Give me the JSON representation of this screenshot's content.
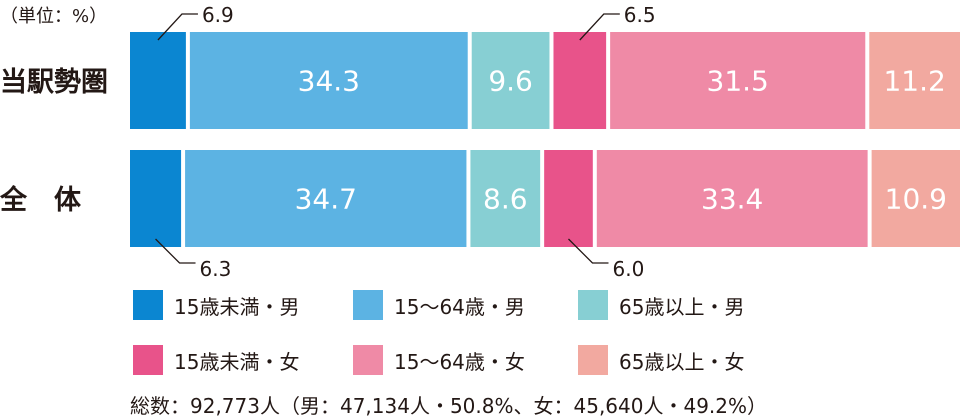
{
  "unit_label": "（単位：%）",
  "total_note": "総数：92,773人（男：47,134人・50.8%、女：45,640人・49.2%）",
  "chart_data": {
    "type": "bar",
    "orientation": "horizontal",
    "stacked": true,
    "normalized": true,
    "categories": [
      "当駅勢圏",
      "全　体"
    ],
    "series": [
      {
        "name": "15歳未満・男",
        "color": "#0b86d1",
        "values": [
          6.9,
          6.3
        ]
      },
      {
        "name": "15〜64歳・男",
        "color": "#5cb3e3",
        "values": [
          34.3,
          34.7
        ]
      },
      {
        "name": "65歳以上・男",
        "color": "#87cfd3",
        "values": [
          9.6,
          8.6
        ]
      },
      {
        "name": "15歳未満・女",
        "color": "#e8538a",
        "values": [
          6.5,
          6.0
        ]
      },
      {
        "name": "15〜64歳・女",
        "color": "#ef8aa6",
        "values": [
          31.5,
          33.4
        ]
      },
      {
        "name": "65歳以上・女",
        "color": "#f2a9a0",
        "values": [
          11.2,
          10.9
        ]
      }
    ],
    "legend_position": "bottom",
    "grid": false
  }
}
